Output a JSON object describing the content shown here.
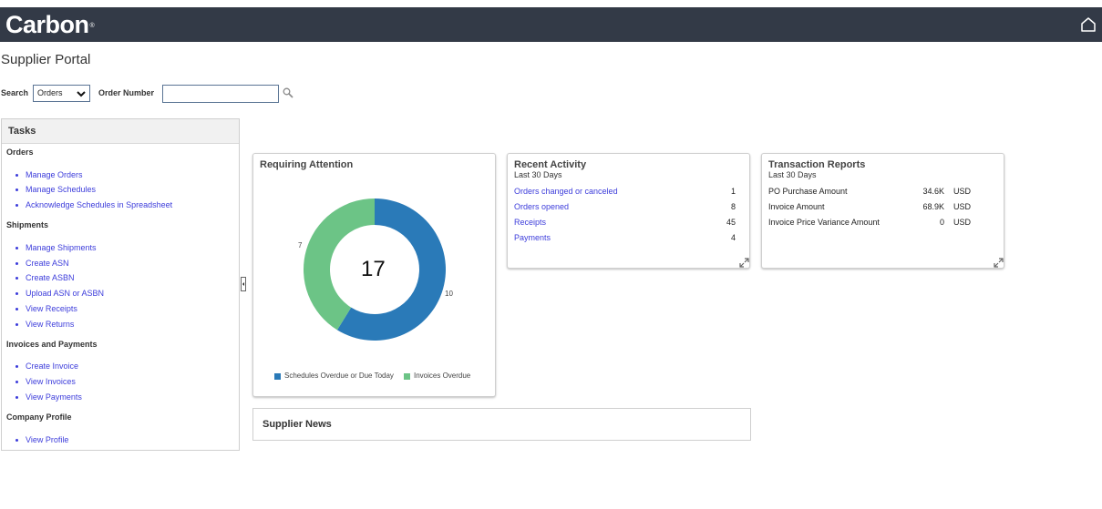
{
  "app": {
    "brand": "Carbon",
    "brand_mark": "®",
    "page_title": "Supplier Portal"
  },
  "icons": {
    "home": "home-icon",
    "search": "search-icon",
    "dropdown": "chevron-down-icon",
    "expand": "expand-icon",
    "collapse": "collapse-panel-icon"
  },
  "search": {
    "label": "Search",
    "selected": "Orders",
    "order_label": "Order Number",
    "order_value": "",
    "order_placeholder": ""
  },
  "tasks": {
    "title": "Tasks",
    "sections": [
      {
        "title": "Orders",
        "links": [
          "Manage Orders",
          "Manage Schedules",
          "Acknowledge Schedules in Spreadsheet"
        ]
      },
      {
        "title": "Shipments",
        "links": [
          "Manage Shipments",
          "Create ASN",
          "Create ASBN",
          "Upload ASN or ASBN",
          "View Receipts",
          "View Returns"
        ]
      },
      {
        "title": "Invoices and Payments",
        "links": [
          "Create Invoice",
          "View Invoices",
          "View Payments"
        ]
      },
      {
        "title": "Company Profile",
        "links": [
          "View Profile"
        ]
      }
    ]
  },
  "attention": {
    "title": "Requiring Attention",
    "total": "17"
  },
  "chart_data": {
    "type": "pie",
    "donut": true,
    "title": "Requiring Attention",
    "center_label": "17",
    "series": [
      {
        "name": "Schedules Overdue or Due Today",
        "value": 10,
        "color": "#2a7ab8"
      },
      {
        "name": "Invoices Overdue",
        "value": 7,
        "color": "#6cc486"
      }
    ],
    "slice_labels": [
      "10",
      "7"
    ],
    "legend": "bottom"
  },
  "recent": {
    "title": "Recent Activity",
    "subtitle": "Last 30 Days",
    "rows": [
      {
        "label": "Orders changed or canceled",
        "value": "1"
      },
      {
        "label": "Orders opened",
        "value": "8"
      },
      {
        "label": "Receipts",
        "value": "45"
      },
      {
        "label": "Payments",
        "value": "4"
      }
    ]
  },
  "reports": {
    "title": "Transaction Reports",
    "subtitle": "Last 30 Days",
    "rows": [
      {
        "label": "PO Purchase Amount",
        "value": "34.6K",
        "currency": "USD"
      },
      {
        "label": "Invoice Amount",
        "value": "68.9K",
        "currency": "USD"
      },
      {
        "label": "Invoice Price Variance Amount",
        "value": "0",
        "currency": "USD"
      }
    ]
  },
  "news": {
    "title": "Supplier News"
  },
  "colors": {
    "header_bg": "#333a47",
    "link": "#3d3ddb",
    "series1": "#2a7ab8",
    "series2": "#6cc486"
  }
}
